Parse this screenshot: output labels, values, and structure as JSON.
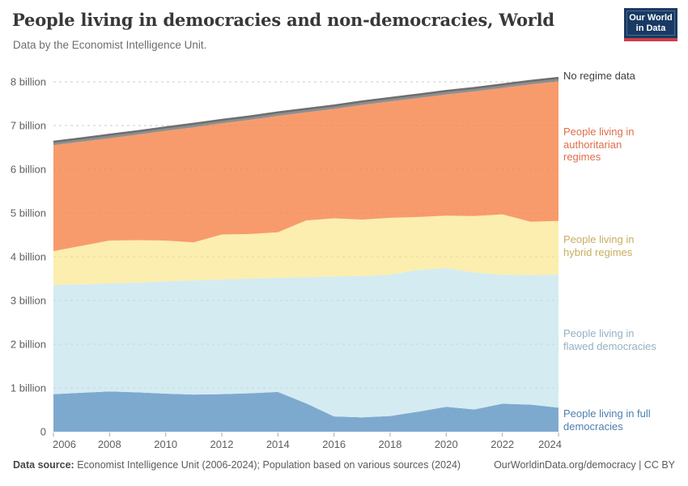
{
  "header": {
    "title": "People living in democracies and non-democracies, World",
    "subtitle": "Data by the Economist Intelligence Unit.",
    "logo": {
      "line1": "Our World",
      "line2": "in Data"
    }
  },
  "chart_data": {
    "type": "area",
    "stacked": true,
    "title": "People living in democracies and non-democracies, World",
    "xlabel": "",
    "ylabel": "",
    "values_unit": "billions of people",
    "ylim_billions": [
      0,
      8
    ],
    "grid": true,
    "legend_position": "right",
    "x": [
      2006,
      2007,
      2008,
      2009,
      2010,
      2011,
      2012,
      2013,
      2014,
      2015,
      2016,
      2017,
      2018,
      2019,
      2020,
      2021,
      2022,
      2023,
      2024
    ],
    "x_tick_labels": [
      "2006",
      "2008",
      "2010",
      "2012",
      "2014",
      "2016",
      "2018",
      "2020",
      "2022",
      "2024"
    ],
    "x_ticks": [
      2006,
      2008,
      2010,
      2012,
      2014,
      2016,
      2018,
      2020,
      2022,
      2024
    ],
    "y_ticks": [
      {
        "value": 0,
        "label": "0"
      },
      {
        "value": 1,
        "label": "1 billion"
      },
      {
        "value": 2,
        "label": "2 billion"
      },
      {
        "value": 3,
        "label": "3 billion"
      },
      {
        "value": 4,
        "label": "4 billion"
      },
      {
        "value": 5,
        "label": "5 billion"
      },
      {
        "value": 6,
        "label": "6 billion"
      },
      {
        "value": 7,
        "label": "7 billion"
      },
      {
        "value": 8,
        "label": "8 billion"
      }
    ],
    "series": [
      {
        "key": "full_democracies",
        "name": "People living in full democracies",
        "label_lines": [
          "People living in full",
          "democracies"
        ],
        "color": "#7EA9CF",
        "label_color": "#4C80AE",
        "values": [
          0.86,
          0.89,
          0.92,
          0.9,
          0.87,
          0.85,
          0.86,
          0.88,
          0.91,
          0.65,
          0.35,
          0.33,
          0.36,
          0.46,
          0.57,
          0.51,
          0.64,
          0.62,
          0.55
        ]
      },
      {
        "key": "flawed_democracies",
        "name": "People living in flawed democracies",
        "label_lines": [
          "People living in",
          "flawed democracies"
        ],
        "color": "#D4EBF2",
        "label_color": "#95B0C3",
        "values": [
          2.5,
          2.48,
          2.47,
          2.51,
          2.57,
          2.61,
          2.62,
          2.62,
          2.61,
          2.88,
          3.2,
          3.23,
          3.23,
          3.24,
          3.17,
          3.13,
          2.95,
          2.96,
          3.04
        ]
      },
      {
        "key": "hybrid_regimes",
        "name": "People living in hybrid regimes",
        "label_lines": [
          "People living in",
          "hybrid regimes"
        ],
        "color": "#FBEEAE",
        "label_color": "#C7AE5E",
        "values": [
          0.77,
          0.88,
          0.98,
          0.97,
          0.93,
          0.87,
          1.03,
          1.02,
          1.04,
          1.3,
          1.33,
          1.29,
          1.3,
          1.21,
          1.2,
          1.29,
          1.38,
          1.22,
          1.23
        ]
      },
      {
        "key": "authoritarian_regimes",
        "name": "People living in authoritarian regimes",
        "label_lines": [
          "People living in",
          "authoritarian",
          "regimes"
        ],
        "color": "#F89B6C",
        "label_color": "#DE6E4B",
        "values": [
          2.42,
          2.38,
          2.34,
          2.41,
          2.51,
          2.63,
          2.54,
          2.61,
          2.66,
          2.47,
          2.5,
          2.62,
          2.66,
          2.72,
          2.77,
          2.85,
          2.89,
          3.14,
          3.19
        ]
      },
      {
        "key": "no_regime_data",
        "name": "No regime data",
        "label_lines": [
          "No regime data"
        ],
        "color": "#8F8F8F",
        "label_color": "#3E3E3E",
        "top_line_color": "#6E6E6E",
        "values": [
          0.08,
          0.08,
          0.08,
          0.08,
          0.08,
          0.08,
          0.08,
          0.08,
          0.08,
          0.08,
          0.08,
          0.08,
          0.08,
          0.08,
          0.08,
          0.08,
          0.08,
          0.08,
          0.08
        ]
      }
    ]
  },
  "footer": {
    "source_label": "Data source:",
    "source_text": " Economist Intelligence Unit (2006-2024); Population based on various sources (2024)",
    "link": "OurWorldinData.org/democracy",
    "license": " | CC BY"
  }
}
